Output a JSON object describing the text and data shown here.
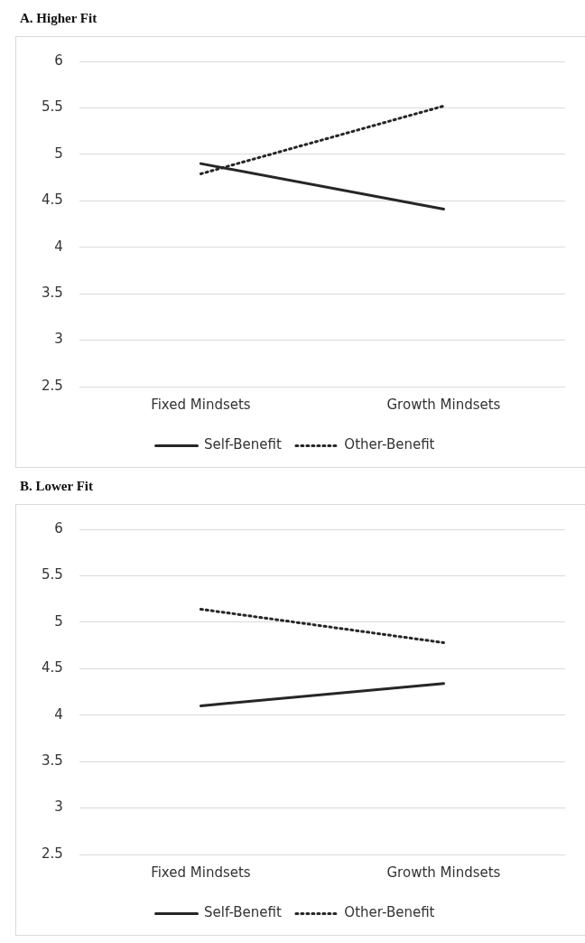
{
  "chart_data": [
    {
      "type": "line",
      "title": "A. Higher Fit",
      "categories": [
        "Fixed Mindsets",
        "Growth Mindsets"
      ],
      "series": [
        {
          "name": "Self-Benefit",
          "color": "#262626",
          "values": [
            4.9,
            4.41
          ],
          "line_style": "solid"
        },
        {
          "name": "Other-Benefit",
          "color": "#262626",
          "values": [
            4.79,
            5.52
          ],
          "line_style": "dotted"
        }
      ],
      "ylim": [
        2.5,
        6
      ],
      "yticks": [
        2.5,
        3,
        3.5,
        4,
        4.5,
        5,
        5.5,
        6
      ],
      "grid": "y",
      "legend": "bottom",
      "marker": "none"
    },
    {
      "type": "line",
      "title": "B. Lower Fit",
      "categories": [
        "Fixed Mindsets",
        "Growth Mindsets"
      ],
      "series": [
        {
          "name": "Self-Benefit",
          "color": "#262626",
          "values": [
            4.1,
            4.34
          ],
          "line_style": "solid"
        },
        {
          "name": "Other-Benefit",
          "color": "#262626",
          "values": [
            5.14,
            4.78
          ],
          "line_style": "dotted"
        }
      ],
      "ylim": [
        2.5,
        6
      ],
      "yticks": [
        2.5,
        3,
        3.5,
        4,
        4.5,
        5,
        5.5,
        6
      ],
      "grid": "y",
      "legend": "bottom",
      "marker": "none"
    }
  ]
}
